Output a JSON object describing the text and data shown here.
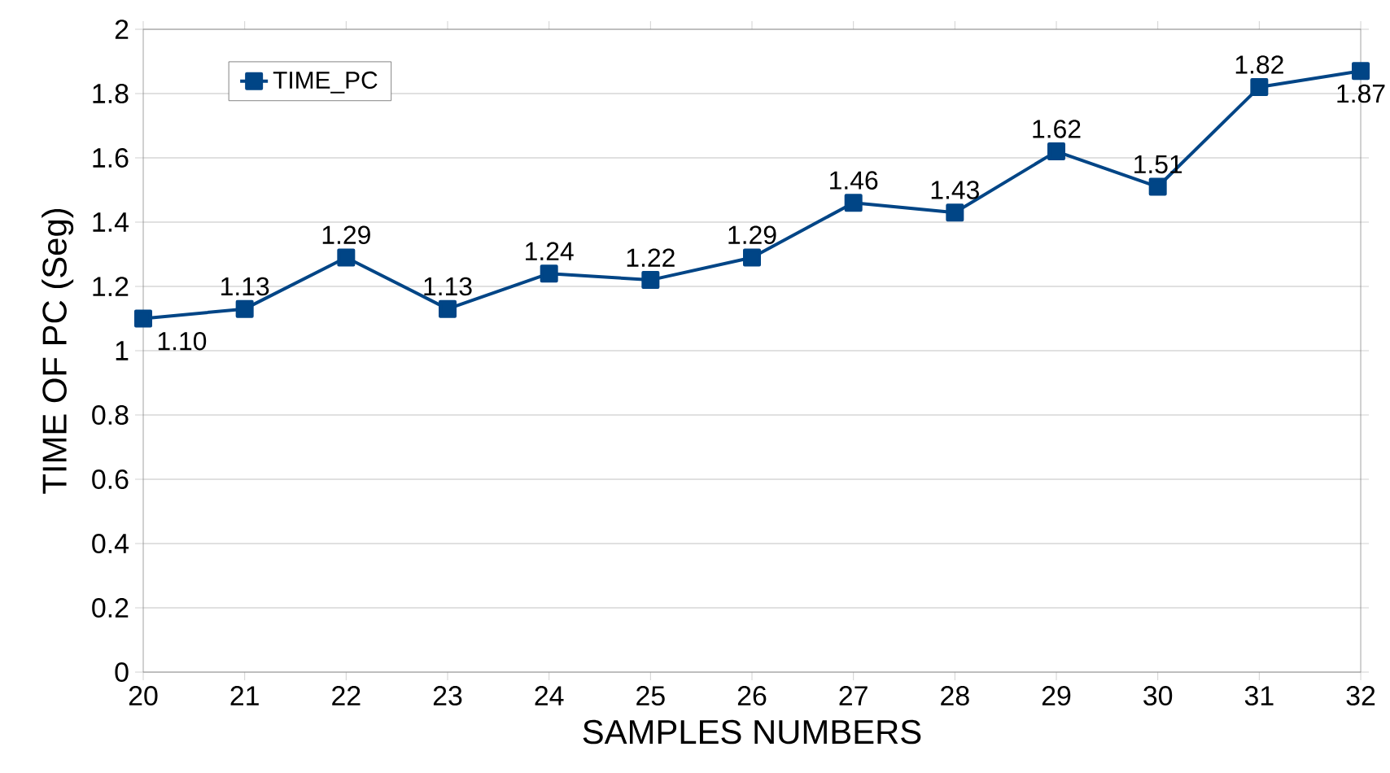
{
  "chart_data": {
    "type": "line",
    "xlabel": "SAMPLES  NUMBERS",
    "ylabel": "TIME OF PC (Seg)",
    "x": [
      20,
      21,
      22,
      23,
      24,
      25,
      26,
      27,
      28,
      29,
      30,
      31,
      32
    ],
    "series": [
      {
        "name": "TIME_PC",
        "color": "#004586",
        "values": [
          1.1,
          1.13,
          1.29,
          1.13,
          1.24,
          1.22,
          1.29,
          1.46,
          1.43,
          1.62,
          1.51,
          1.82,
          1.87
        ],
        "value_labels": [
          "1.10",
          "1.13",
          "1.29",
          "1.13",
          "1.24",
          "1.22",
          "1.29",
          "1.46",
          "1.43",
          "1.62",
          "1.51",
          "1.82",
          "1.87"
        ]
      }
    ],
    "xlim": [
      20,
      32
    ],
    "xticks": [
      20,
      21,
      22,
      23,
      24,
      25,
      26,
      27,
      28,
      29,
      30,
      31,
      32
    ],
    "ylim": [
      0,
      2
    ],
    "yticks": [
      0,
      0.2,
      0.4,
      0.6,
      0.8,
      1,
      1.2,
      1.4,
      1.6,
      1.8,
      2
    ],
    "grid": "y",
    "legend": "top left",
    "marker": "square",
    "line_style": "solid"
  }
}
